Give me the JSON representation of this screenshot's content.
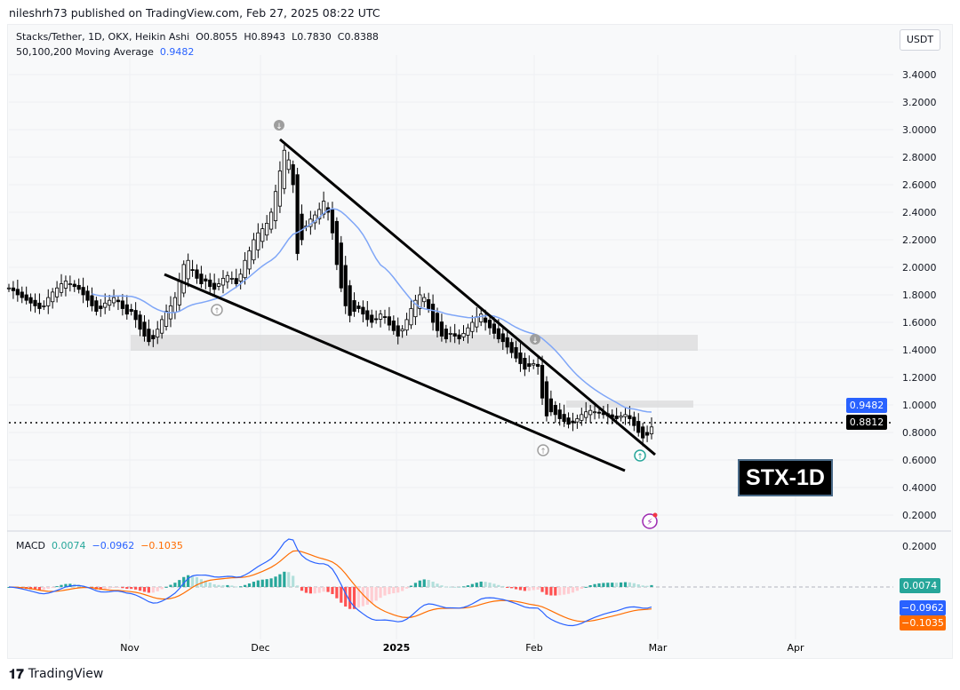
{
  "header": {
    "published": "nileshrh73 published on TradingView.com, Feb 27, 2025 08:22 UTC"
  },
  "legend": {
    "symbol": "Stacks/Tether, 1D, OKX, Heikin Ashi",
    "open": "O0.8055",
    "high": "H0.8943",
    "low": "L0.7830",
    "close": "C0.8388",
    "ma_label": "50,100,200 Moving Average",
    "ma_value": "0.9482"
  },
  "currency": "USDT",
  "price_axis": [
    "3.4000",
    "3.2000",
    "3.0000",
    "2.8000",
    "2.6000",
    "2.4000",
    "2.2000",
    "2.0000",
    "1.8000",
    "1.6000",
    "1.4000",
    "1.2000",
    "1.0000",
    "0.8000",
    "0.6000",
    "0.4000",
    "0.2000"
  ],
  "price_badges": {
    "ma": "0.9482",
    "last": "0.8812"
  },
  "macd": {
    "label": "MACD",
    "hist": "0.0074",
    "macd": "−0.0962",
    "signal": "−0.1035",
    "axis": [
      "0.2000"
    ]
  },
  "time_axis": [
    {
      "label": "Nov"
    },
    {
      "label": "Dec"
    },
    {
      "label": "2025",
      "bold": true
    },
    {
      "label": "Feb"
    },
    {
      "label": "Mar"
    },
    {
      "label": "Apr"
    }
  ],
  "annotation": "STX-1D",
  "brand": "TradingView",
  "colors": {
    "ma": "#7fa6f7",
    "macd": "#2962ff",
    "signal": "#ff6d00",
    "hist_up": "#26a69a",
    "hist_up_light": "#b2dfdb",
    "hist_down": "#ff5252",
    "hist_down_light": "#ffcdd2",
    "ma_badge": "#2962ff",
    "last_badge": "#000000",
    "hist_badge": "#26a69a",
    "signal_badge": "#ff6d00"
  },
  "chart_data": {
    "type": "candlestick",
    "style": "Heikin Ashi",
    "start_date": "2024-10-03",
    "end_date": "2025-02-27",
    "closes": [
      1.85,
      1.83,
      1.8,
      1.78,
      1.76,
      1.74,
      1.72,
      1.7,
      1.72,
      1.78,
      1.82,
      1.85,
      1.88,
      1.9,
      1.88,
      1.86,
      1.84,
      1.8,
      1.76,
      1.72,
      1.68,
      1.7,
      1.74,
      1.76,
      1.78,
      1.75,
      1.7,
      1.66,
      1.68,
      1.62,
      1.55,
      1.5,
      1.46,
      1.48,
      1.55,
      1.62,
      1.68,
      1.72,
      1.78,
      1.9,
      2.02,
      2.05,
      1.98,
      1.92,
      1.88,
      1.9,
      1.86,
      1.84,
      1.88,
      1.92,
      1.94,
      1.92,
      1.88,
      1.95,
      2.05,
      2.12,
      2.2,
      2.25,
      2.28,
      2.32,
      2.4,
      2.55,
      2.7,
      2.85,
      2.78,
      2.6,
      2.1,
      2.2,
      2.3,
      2.35,
      2.38,
      2.42,
      2.48,
      2.4,
      2.25,
      2.02,
      1.85,
      1.72,
      1.65,
      1.68,
      1.7,
      1.66,
      1.62,
      1.6,
      1.62,
      1.66,
      1.64,
      1.58,
      1.54,
      1.5,
      1.55,
      1.62,
      1.7,
      1.76,
      1.8,
      1.78,
      1.7,
      1.6,
      1.54,
      1.5,
      1.48,
      1.52,
      1.5,
      1.48,
      1.52,
      1.56,
      1.6,
      1.64,
      1.66,
      1.6,
      1.56,
      1.52,
      1.48,
      1.46,
      1.42,
      1.38,
      1.34,
      1.3,
      1.26,
      1.28,
      1.3,
      1.28,
      1.05,
      0.92,
      0.95,
      0.93,
      0.9,
      0.88,
      0.86,
      0.87,
      0.9,
      0.93,
      0.95,
      0.96,
      0.95,
      0.94,
      0.93,
      0.92,
      0.91,
      0.9,
      0.92,
      0.93,
      0.9,
      0.85,
      0.8,
      0.76,
      0.78,
      0.84
    ],
    "ylim": [
      0.1,
      3.5
    ],
    "last_price": 0.8812,
    "moving_average_last": 0.9482,
    "macd_last": {
      "histogram": 0.0074,
      "macd": -0.0962,
      "signal": -0.1035
    }
  }
}
